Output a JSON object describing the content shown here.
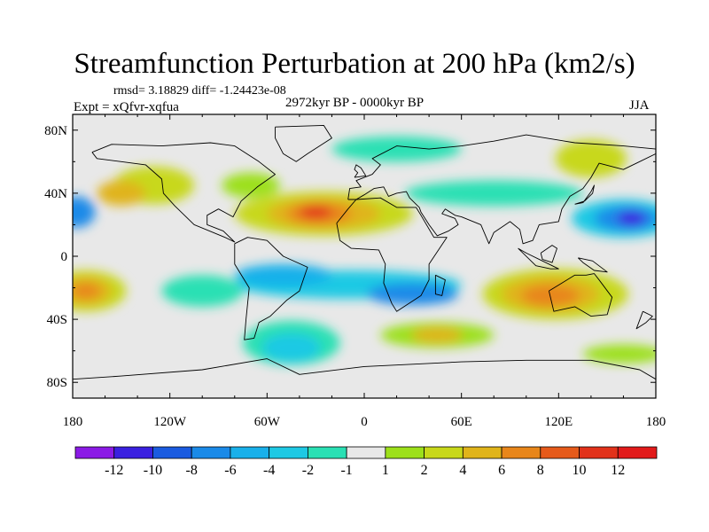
{
  "title": "Streamfunction Perturbation at 200 hPa (km2/s)",
  "stats_text": "rmsd= 3.18829 diff= -1.24423e-08",
  "experiment_text": "Expt = xQfvr-xqfua",
  "period_text": "2972kyr BP - 0000kyr BP",
  "season_text": "JJA",
  "chart_data": {
    "type": "heatmap",
    "projection": "cylindrical equidistant",
    "title": "Streamfunction Perturbation at 200 hPa (km2/s)",
    "units": "km2/s",
    "xlim": [
      -180,
      180
    ],
    "ylim": [
      -90,
      90
    ],
    "x_ticks": [
      {
        "value": -180,
        "label": "180"
      },
      {
        "value": -120,
        "label": "120W"
      },
      {
        "value": -60,
        "label": "60W"
      },
      {
        "value": 0,
        "label": "0"
      },
      {
        "value": 60,
        "label": "60E"
      },
      {
        "value": 120,
        "label": "120E"
      },
      {
        "value": 180,
        "label": "180"
      }
    ],
    "y_ticks": [
      {
        "value": 80,
        "label": "80N"
      },
      {
        "value": 40,
        "label": "40N"
      },
      {
        "value": 0,
        "label": "0"
      },
      {
        "value": -40,
        "label": "40S"
      },
      {
        "value": -80,
        "label": "80S"
      }
    ],
    "colorbar": {
      "labels": [
        "-12",
        "-10",
        "-8",
        "-6",
        "-4",
        "-2",
        "-1",
        "1",
        "2",
        "4",
        "6",
        "8",
        "10",
        "12"
      ],
      "colors": [
        "#8b1ae6",
        "#3a20e0",
        "#1a5be0",
        "#1a8ae8",
        "#19b0ea",
        "#1ec9e4",
        "#2ae0b4",
        "#e8e8e8",
        "#9de01a",
        "#c8d81a",
        "#e0b41a",
        "#e8861a",
        "#e65a1a",
        "#e2321a",
        "#e21a1a"
      ]
    },
    "field_features": [
      {
        "name": "north-atlantic-high",
        "lon": -30,
        "lat": 27,
        "value": 10
      },
      {
        "name": "north-pacific-low",
        "lon": 160,
        "lat": 27,
        "value": -10
      },
      {
        "name": "west-pacific-low",
        "lon": -175,
        "lat": 30,
        "value": -5
      },
      {
        "name": "australia-high",
        "lon": 115,
        "lat": -25,
        "value": 9
      },
      {
        "name": "south-pacific-high",
        "lon": -170,
        "lat": -20,
        "value": 9
      },
      {
        "name": "south-atlantic-low",
        "lon": 30,
        "lat": -25,
        "value": -6
      },
      {
        "name": "south-american-low",
        "lon": -60,
        "lat": -15,
        "value": -5
      },
      {
        "name": "southern-ocean-low",
        "lon": -40,
        "lat": -60,
        "value": -4
      },
      {
        "name": "indian-ocean-high",
        "lon": 45,
        "lat": -50,
        "value": 7
      },
      {
        "name": "north-america-high",
        "lon": -130,
        "lat": 50,
        "value": 5
      },
      {
        "name": "arctic-low",
        "lon": 20,
        "lat": 70,
        "value": -3
      },
      {
        "name": "asia-high",
        "lon": 140,
        "lat": 60,
        "value": 6
      }
    ]
  }
}
